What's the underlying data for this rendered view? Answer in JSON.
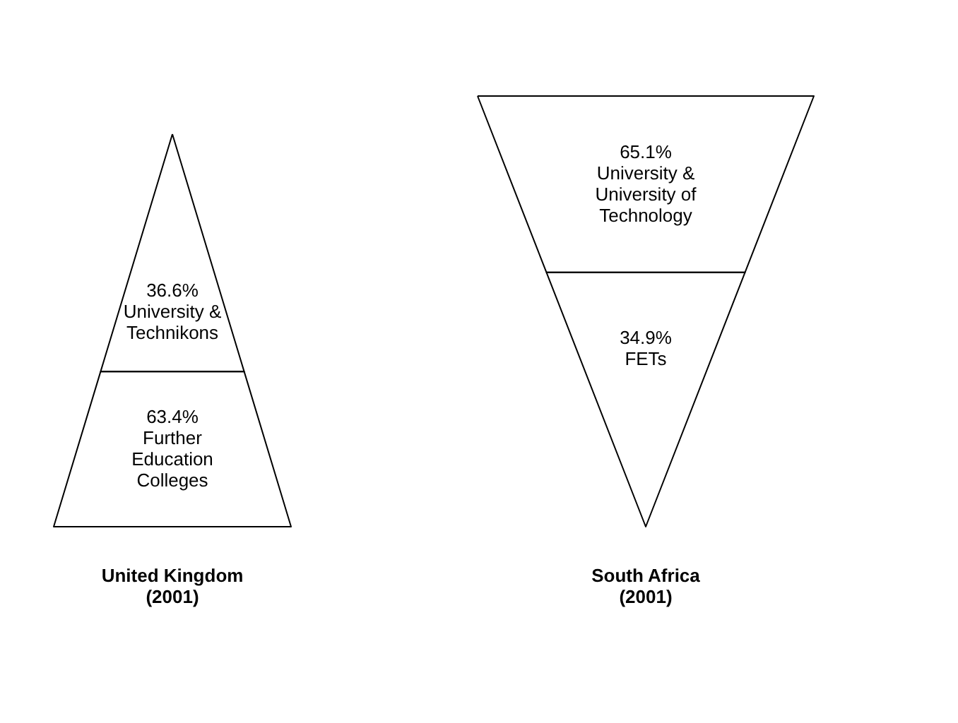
{
  "chart_data": [
    {
      "type": "other",
      "title": "United Kingdom\n(2001)",
      "categories": [
        "University &\nTechnikons",
        "Further\nEducation\nColleges"
      ],
      "values": [
        36.6,
        63.4
      ],
      "value_labels": [
        "36.6%",
        "63.4%"
      ]
    },
    {
      "type": "other",
      "title": "South Africa\n(2001)",
      "categories": [
        "University &\nUniversity of\nTechnology",
        "FETs"
      ],
      "values": [
        65.1,
        34.9
      ],
      "value_labels": [
        "65.1%",
        "34.9%"
      ]
    }
  ]
}
